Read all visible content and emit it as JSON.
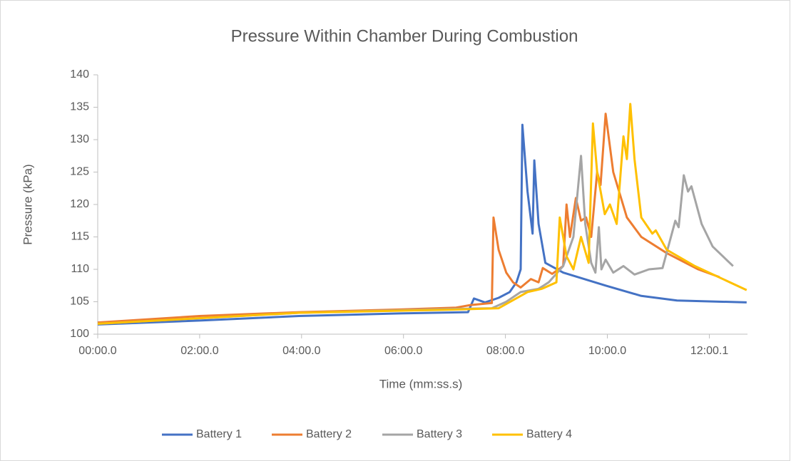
{
  "chart_data": {
    "type": "line",
    "title": "Pressure Within Chamber During Combustion",
    "x_label": "Time (mm:ss.s)",
    "y_label": "Pressure (kPa)",
    "xlim": [
      0,
      765
    ],
    "ylim": [
      100,
      140
    ],
    "xticks": [
      {
        "value": 0,
        "label": "00:00.0"
      },
      {
        "value": 120,
        "label": "02:00.0"
      },
      {
        "value": 240,
        "label": "04:00.0"
      },
      {
        "value": 360,
        "label": "06:00.0"
      },
      {
        "value": 480,
        "label": "08:00.0"
      },
      {
        "value": 600,
        "label": "10:00.0"
      },
      {
        "value": 720.1,
        "label": "12:00.1"
      }
    ],
    "yticks": [
      100,
      105,
      110,
      115,
      120,
      125,
      130,
      135,
      140
    ],
    "grid": false,
    "legend": "bottom",
    "series": [
      {
        "name": "Battery 1",
        "color": "#4472c4",
        "x": [
          0,
          120,
          237,
          355,
          436,
          443,
          456,
          472,
          485,
          493,
          498,
          500,
          506,
          512,
          514,
          519,
          527,
          548,
          598,
          640,
          682,
          764
        ],
        "values": [
          101.5,
          102.1,
          102.8,
          103.2,
          103.4,
          105.5,
          104.9,
          105.6,
          106.5,
          108,
          110,
          132.3,
          122,
          115.5,
          126.8,
          117,
          111,
          109.5,
          107.5,
          105.9,
          105.2,
          104.9
        ]
      },
      {
        "name": "Battery 2",
        "color": "#ed7d31",
        "x": [
          0,
          120,
          237,
          355,
          422,
          439,
          464,
          466,
          472,
          481,
          489,
          498,
          510,
          519,
          524,
          535,
          548,
          552,
          556,
          563,
          569,
          575,
          581,
          588,
          592,
          598,
          607,
          623,
          640,
          670,
          707,
          732
        ],
        "values": [
          101.8,
          102.8,
          103.4,
          103.8,
          104.1,
          104.5,
          104.8,
          118,
          113,
          109.5,
          108,
          107.2,
          108.5,
          108,
          110.2,
          109.3,
          110.5,
          120,
          115,
          121,
          117.5,
          118,
          115,
          125,
          123,
          134,
          125,
          118,
          115,
          112.5,
          110,
          108.8
        ]
      },
      {
        "name": "Battery 3",
        "color": "#a5a5a5",
        "x": [
          0,
          237,
          422,
          464,
          481,
          498,
          519,
          531,
          548,
          560,
          569,
          574,
          581,
          586,
          590,
          593,
          598,
          607,
          619,
          632,
          649,
          665,
          680,
          684,
          690,
          695,
          699,
          711,
          724,
          748
        ],
        "values": [
          101.6,
          103.3,
          103.9,
          104,
          105,
          106.5,
          107,
          108,
          110.5,
          115,
          127.5,
          117,
          111,
          109.5,
          116.5,
          110,
          111.5,
          109.5,
          110.5,
          109.2,
          110,
          110.2,
          117.5,
          116.5,
          124.5,
          122,
          122.8,
          117,
          113.5,
          110.5
        ]
      },
      {
        "name": "Battery 4",
        "color": "#ffc000",
        "x": [
          0,
          237,
          422,
          472,
          506,
          523,
          540,
          544,
          552,
          560,
          569,
          578,
          583,
          588,
          597,
          603,
          611,
          619,
          623,
          627,
          632,
          640,
          653,
          657,
          670,
          703,
          764
        ],
        "values": [
          101.6,
          103.3,
          103.8,
          104,
          106.5,
          107,
          108,
          118,
          112,
          110,
          115,
          111,
          132.5,
          125,
          118.5,
          120,
          117,
          130.5,
          127,
          135.5,
          127,
          118,
          115.5,
          116,
          113,
          110.5,
          106.8
        ]
      }
    ]
  }
}
